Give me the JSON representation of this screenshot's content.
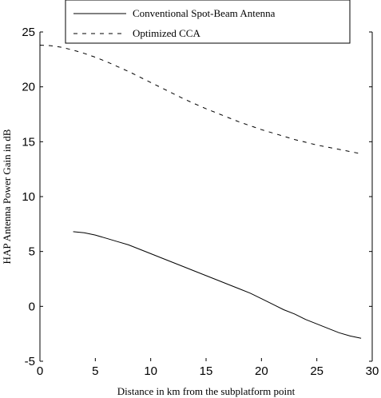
{
  "chart_data": {
    "type": "line",
    "title": "",
    "xlabel": "Distance in km from the subplatform point",
    "ylabel": "HAP Antenna Power Gain in dB",
    "xlim": [
      0,
      30
    ],
    "ylim": [
      -5,
      25
    ],
    "xticks": [
      0,
      5,
      10,
      15,
      20,
      25,
      30
    ],
    "yticks": [
      -5,
      0,
      5,
      10,
      15,
      20,
      25
    ],
    "grid": false,
    "legend_position": "top-center",
    "series": [
      {
        "name": "Conventional Spot-Beam Antenna",
        "style": "solid",
        "color": "#000000",
        "x": [
          3,
          4,
          5,
          6,
          7,
          8,
          9,
          10,
          11,
          12,
          13,
          14,
          15,
          16,
          17,
          18,
          19,
          20,
          21,
          22,
          23,
          24,
          25,
          26,
          27,
          28,
          29
        ],
        "y": [
          6.8,
          6.7,
          6.5,
          6.2,
          5.9,
          5.6,
          5.2,
          4.8,
          4.4,
          4.0,
          3.6,
          3.2,
          2.8,
          2.4,
          2.0,
          1.6,
          1.2,
          0.7,
          0.2,
          -0.3,
          -0.7,
          -1.2,
          -1.6,
          -2.0,
          -2.4,
          -2.7,
          -2.9
        ]
      },
      {
        "name": "Optimized CCA",
        "style": "dashed",
        "color": "#000000",
        "x": [
          0,
          1,
          2,
          3,
          4,
          5,
          6,
          7,
          8,
          9,
          10,
          11,
          12,
          13,
          14,
          15,
          16,
          17,
          18,
          19,
          20,
          21,
          22,
          23,
          24,
          25,
          26,
          27,
          28,
          29
        ],
        "y": [
          23.8,
          23.75,
          23.6,
          23.35,
          23.05,
          22.7,
          22.3,
          21.85,
          21.4,
          20.9,
          20.4,
          19.9,
          19.4,
          18.9,
          18.45,
          18.0,
          17.6,
          17.2,
          16.8,
          16.45,
          16.1,
          15.8,
          15.5,
          15.2,
          14.95,
          14.7,
          14.5,
          14.3,
          14.1,
          13.9
        ]
      }
    ]
  }
}
